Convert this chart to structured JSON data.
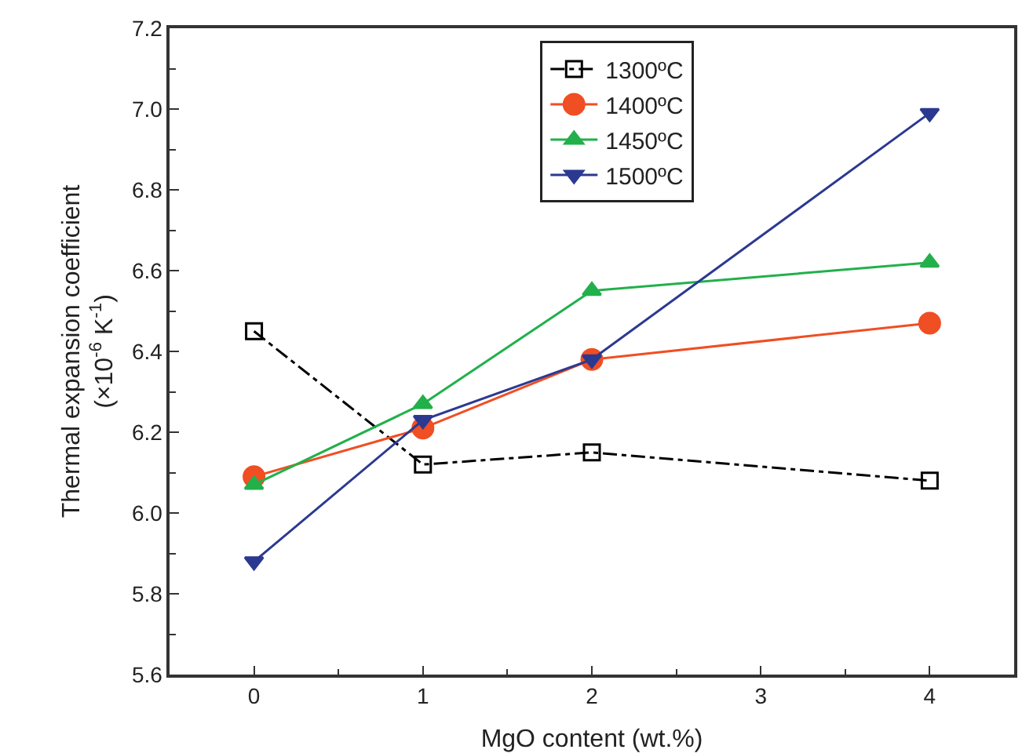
{
  "chart_data": {
    "type": "line",
    "xlabel": "MgO content (wt.%)",
    "ylabel": "Thermal expansion coefficient\n(×10$^{-6}$ K$^{-1}$)",
    "x": [
      0,
      1,
      2,
      4
    ],
    "series": [
      {
        "name": "1300ºC",
        "color": "#000000",
        "values": [
          6.45,
          6.12,
          6.15,
          6.08
        ],
        "marker": "square-open",
        "line_style": "dashdot"
      },
      {
        "name": "1400ºC",
        "color": "#f04e23",
        "values": [
          6.09,
          6.21,
          6.38,
          6.47
        ],
        "marker": "circle",
        "line_style": "solid"
      },
      {
        "name": "1450ºC",
        "color": "#22b04b",
        "values": [
          6.07,
          6.27,
          6.55,
          6.62
        ],
        "marker": "triangle",
        "line_style": "solid"
      },
      {
        "name": "1500ºC",
        "color": "#2b3990",
        "values": [
          5.88,
          6.23,
          6.38,
          6.99
        ],
        "marker": "triangle-down",
        "line_style": "solid"
      }
    ],
    "xlim": [
      -0.5,
      4.5
    ],
    "xticks": [
      0,
      1,
      2,
      3,
      4
    ],
    "ylim": [
      5.6,
      7.2
    ],
    "yticks": [
      {
        "value": 5.6,
        "label": "5.6"
      },
      {
        "value": 5.8,
        "label": "5.8"
      },
      {
        "value": 6.0,
        "label": "6.0"
      },
      {
        "value": 6.2,
        "label": "6.2"
      },
      {
        "value": 6.4,
        "label": "6.4"
      },
      {
        "value": 6.6,
        "label": "6.6"
      },
      {
        "value": 6.8,
        "label": "6.8"
      },
      {
        "value": 7.0,
        "label": "7.0"
      },
      {
        "value": 7.2,
        "label": "7.2"
      }
    ],
    "grid": false,
    "legend": "top"
  }
}
